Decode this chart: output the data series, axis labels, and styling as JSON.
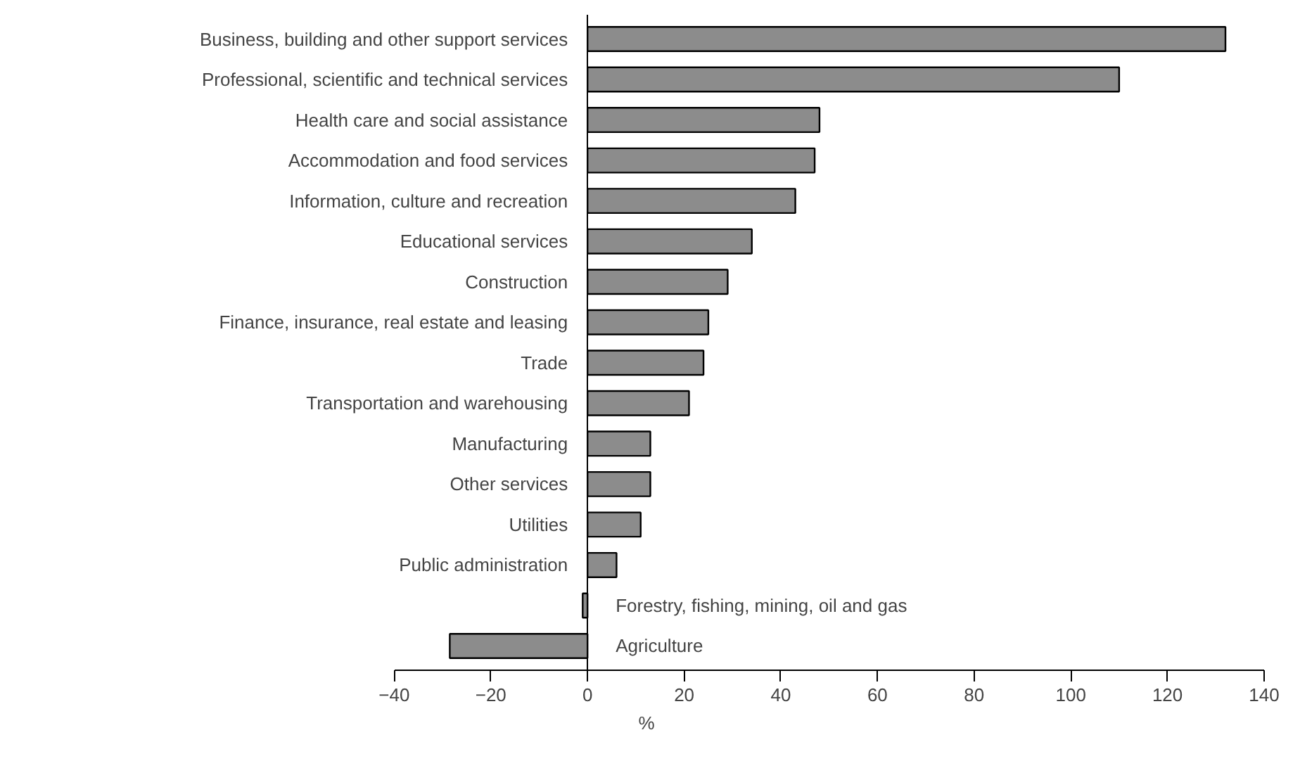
{
  "chart_data": {
    "type": "bar",
    "orientation": "horizontal",
    "xlabel": "%",
    "categories": [
      "Business, building and other support services",
      "Professional, scientific and technical services",
      "Health care and social assistance",
      "Accommodation and food services",
      "Information, culture and recreation",
      "Educational services",
      "Construction",
      "Finance, insurance, real estate and leasing",
      "Trade",
      "Transportation and warehousing",
      "Manufacturing",
      "Other services",
      "Utilities",
      "Public administration",
      "Forestry, fishing, mining, oil and gas",
      "Agriculture"
    ],
    "values": [
      132,
      110,
      48,
      47,
      43,
      34,
      29,
      25,
      24,
      21,
      13,
      13,
      11,
      6,
      -1,
      -28.5
    ],
    "color": "#8c8c8c",
    "xlim": [
      -40,
      140
    ],
    "xticks": [
      -40,
      -20,
      0,
      20,
      40,
      60,
      80,
      100,
      120,
      140
    ],
    "grid": false
  }
}
